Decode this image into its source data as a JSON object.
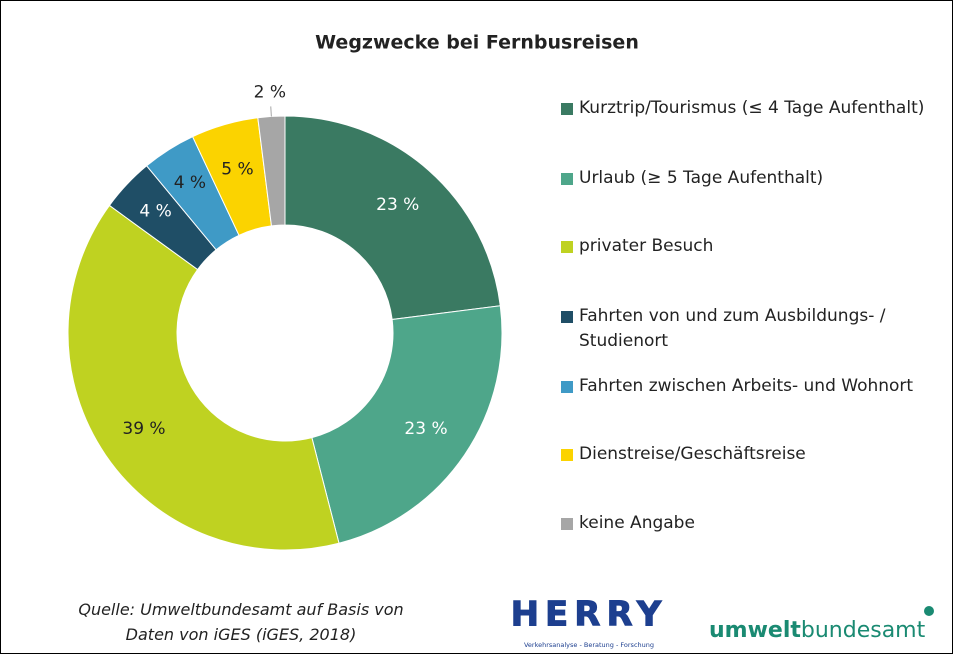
{
  "chart_data": {
    "type": "pie",
    "title": "Wegzwecke bei Fernbusreisen",
    "categories": [
      "Kurztrip/Tourismus (≤ 4 Tage Aufenthalt)",
      "Urlaub (≥ 5 Tage Aufenthalt)",
      "privater Besuch",
      "Fahrten von und zum Ausbildungs- / Studienort",
      "Fahrten zwischen Arbeits- und Wohnort",
      "Dienstreise/Geschäftsreise",
      "keine Angabe"
    ],
    "values": [
      23,
      23,
      39,
      4,
      4,
      5,
      2
    ],
    "value_labels": [
      "23 %",
      "23 %",
      "39 %",
      "4 %",
      "4 %",
      "5 %",
      "2 %"
    ],
    "colors": [
      "#3a7a62",
      "#4ea68a",
      "#bfd221",
      "#1f4e66",
      "#3f9ac6",
      "#fbd300",
      "#a6a6a6"
    ],
    "donut": true,
    "source": [
      "Quelle: Umweltbundesamt auf Basis von",
      "Daten von iGES (iGES, 2018)"
    ],
    "logos": {
      "herry": "HERRY",
      "herry_tagline": "Verkehrsanalyse - Beratung - Forschung",
      "uba_bold": "umwelt",
      "uba_rest": "bundesamt"
    }
  }
}
